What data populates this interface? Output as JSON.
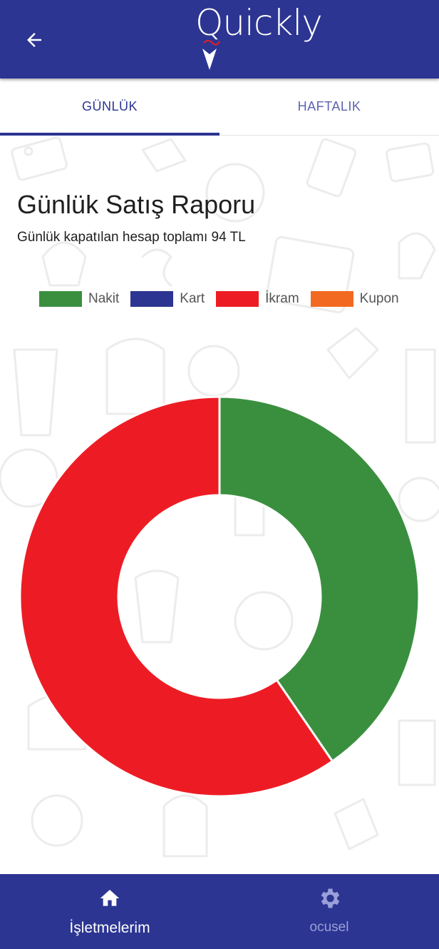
{
  "header": {
    "logo_text": "Quickly",
    "back_icon": "arrow-left-icon",
    "background": "#2c3592"
  },
  "tabs": [
    {
      "label": "GÜNLÜK",
      "active": true
    },
    {
      "label": "HAFTALIK",
      "active": false
    }
  ],
  "report": {
    "title": "Günlük Satış Raporu",
    "subtitle": "Günlük kapatılan hesap toplamı 94 TL"
  },
  "legend": [
    {
      "label": "Nakit",
      "color": "#3a8f3f"
    },
    {
      "label": "Kart",
      "color": "#2c3592"
    },
    {
      "label": "İkram",
      "color": "#ed1c24"
    },
    {
      "label": "Kupon",
      "color": "#f26a22"
    }
  ],
  "chart_data": {
    "type": "pie",
    "variant": "doughnut",
    "categories": [
      "Nakit",
      "Kart",
      "İkram",
      "Kupon"
    ],
    "values": [
      38,
      0,
      56,
      0
    ],
    "colors": [
      "#3a8f3f",
      "#2c3592",
      "#ed1c24",
      "#f26a22"
    ],
    "legend_position": "top"
  },
  "bottom_nav": [
    {
      "label": "İşletmelerim",
      "icon": "home-icon",
      "active": true
    },
    {
      "label": "ocusel",
      "icon": "gear-icon",
      "active": false
    }
  ]
}
